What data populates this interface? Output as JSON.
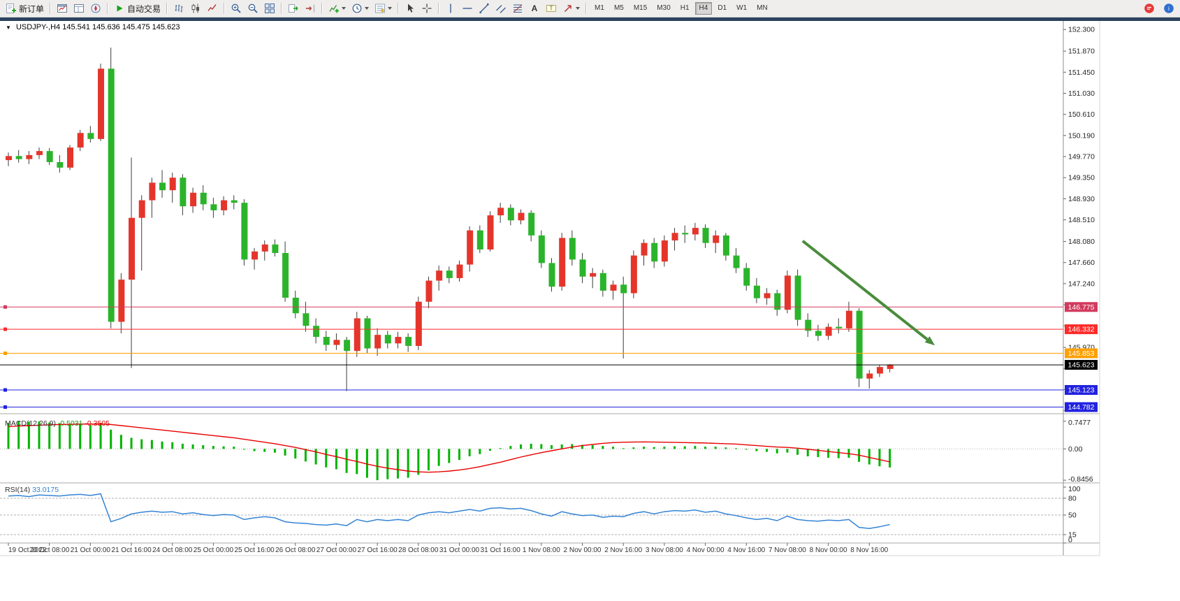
{
  "window": {
    "toolbar": {
      "timeframes": [
        "M1",
        "M5",
        "M15",
        "M30",
        "H1",
        "H4",
        "D1",
        "W1",
        "MN"
      ],
      "active_timeframe": "H4",
      "groups": [
        {
          "items": [
            {
              "icon": "new-order-icon",
              "label": "新订单",
              "name": "new-order-button"
            }
          ]
        },
        {
          "items": [
            {
              "icon": "charts-window-icon",
              "name": "charts-window-button"
            },
            {
              "icon": "data-window-icon",
              "name": "data-window-button"
            },
            {
              "icon": "navigator-icon",
              "name": "navigator-button"
            }
          ]
        },
        {
          "items": [
            {
              "icon": "autotrading-icon",
              "label": "自动交易",
              "name": "autotrading-button"
            }
          ]
        },
        {
          "items": [
            {
              "icon": "bar-chart-icon",
              "name": "bar-chart-button"
            },
            {
              "icon": "candlestick-icon",
              "name": "candlestick-button"
            },
            {
              "icon": "line-chart-icon",
              "name": "line-chart-button"
            }
          ]
        },
        {
          "items": [
            {
              "icon": "zoom-in-icon",
              "name": "zoom-in-button"
            },
            {
              "icon": "zoom-out-icon",
              "name": "zoom-out-button"
            },
            {
              "icon": "tile-windows-icon",
              "name": "tile-windows-button"
            }
          ]
        },
        {
          "items": [
            {
              "icon": "auto-scroll-icon",
              "name": "auto-scroll-button"
            },
            {
              "icon": "chart-shift-icon",
              "name": "chart-shift-button"
            }
          ]
        },
        {
          "items": [
            {
              "icon": "indicators-icon",
              "name": "indicators-button",
              "caret": true
            },
            {
              "icon": "periods-icon",
              "name": "periods-button",
              "caret": true
            },
            {
              "icon": "templates-icon",
              "name": "templates-button",
              "caret": true
            }
          ]
        },
        {
          "items": [
            {
              "icon": "cursor-icon",
              "name": "cursor-button"
            },
            {
              "icon": "crosshair-icon",
              "name": "crosshair-button"
            }
          ]
        },
        {
          "items": [
            {
              "icon": "vertical-line-icon",
              "name": "vertical-line-button"
            },
            {
              "icon": "horizontal-line-icon",
              "name": "horizontal-line-button"
            },
            {
              "icon": "trendline-icon",
              "name": "trendline-button"
            },
            {
              "icon": "equidistant-channel-icon",
              "name": "equidistant-channel-button"
            },
            {
              "icon": "fibonacci-icon",
              "name": "fibonacci-button"
            },
            {
              "icon": "text-icon",
              "name": "text-button"
            },
            {
              "icon": "text-label-icon",
              "name": "text-label-button"
            },
            {
              "icon": "arrows-icon",
              "name": "arrows-button",
              "caret": true
            }
          ]
        }
      ],
      "right_icons": [
        {
          "icon": "community-icon",
          "name": "community-button"
        },
        {
          "icon": "metaquotes-icon",
          "name": "metaquotes-button"
        }
      ]
    }
  },
  "chart": {
    "symbol_period": "USDJPY-,H4",
    "ohlc_line": "145.541 145.636 145.475 145.623"
  },
  "chart_data": {
    "type": "candlestick",
    "symbol": "USDJPY-",
    "timeframe": "H4",
    "bars": 87,
    "colors": {
      "up": "#e5352b",
      "down": "#2bb42b",
      "wick": "#3c3c3c",
      "background": "#ffffff"
    },
    "x_labels": [
      {
        "i": 0,
        "label": "19 Oct 2022"
      },
      {
        "i": 4,
        "label": "20 Oct 08:00"
      },
      {
        "i": 8,
        "label": "21 Oct 00:00"
      },
      {
        "i": 12,
        "label": "21 Oct 16:00"
      },
      {
        "i": 16,
        "label": "24 Oct 08:00"
      },
      {
        "i": 20,
        "label": "25 Oct 00:00"
      },
      {
        "i": 24,
        "label": "25 Oct 16:00"
      },
      {
        "i": 28,
        "label": "26 Oct 08:00"
      },
      {
        "i": 32,
        "label": "27 Oct 00:00"
      },
      {
        "i": 36,
        "label": "27 Oct 16:00"
      },
      {
        "i": 40,
        "label": "28 Oct 08:00"
      },
      {
        "i": 44,
        "label": "31 Oct 00:00"
      },
      {
        "i": 48,
        "label": "31 Oct 16:00"
      },
      {
        "i": 52,
        "label": "1 Nov 08:00"
      },
      {
        "i": 56,
        "label": "2 Nov 00:00"
      },
      {
        "i": 60,
        "label": "2 Nov 16:00"
      },
      {
        "i": 64,
        "label": "3 Nov 08:00"
      },
      {
        "i": 68,
        "label": "4 Nov 00:00"
      },
      {
        "i": 72,
        "label": "4 Nov 16:00"
      },
      {
        "i": 76,
        "label": "7 Nov 08:00"
      },
      {
        "i": 80,
        "label": "8 Nov 00:00"
      },
      {
        "i": 84,
        "label": "8 Nov 16:00"
      }
    ],
    "price_axis": {
      "visible_range": [
        144.65,
        152.47
      ],
      "ticks": [
        152.3,
        151.87,
        151.45,
        151.03,
        150.61,
        150.19,
        149.77,
        149.35,
        148.93,
        148.51,
        148.08,
        147.66,
        147.24,
        146.82,
        146.4,
        145.97,
        145.55,
        145.13,
        144.71
      ]
    },
    "candles": [
      [
        149.7,
        149.85,
        149.58,
        149.78
      ],
      [
        149.78,
        149.9,
        149.65,
        149.72
      ],
      [
        149.72,
        149.88,
        149.62,
        149.8
      ],
      [
        149.8,
        149.95,
        149.72,
        149.88
      ],
      [
        149.88,
        149.94,
        149.6,
        149.66
      ],
      [
        149.66,
        149.8,
        149.45,
        149.55
      ],
      [
        149.55,
        150.0,
        149.5,
        149.95
      ],
      [
        149.95,
        150.3,
        149.88,
        150.24
      ],
      [
        150.24,
        150.38,
        150.05,
        150.12
      ],
      [
        150.12,
        151.62,
        150.08,
        151.52
      ],
      [
        151.52,
        151.94,
        146.35,
        146.48
      ],
      [
        146.48,
        147.45,
        146.25,
        147.32
      ],
      [
        147.32,
        149.75,
        145.56,
        148.55
      ],
      [
        148.55,
        149.0,
        147.5,
        148.9
      ],
      [
        148.9,
        149.35,
        148.55,
        149.25
      ],
      [
        149.25,
        149.5,
        148.95,
        149.1
      ],
      [
        149.1,
        149.45,
        148.85,
        149.35
      ],
      [
        149.35,
        149.42,
        148.6,
        148.78
      ],
      [
        148.78,
        149.15,
        148.65,
        149.05
      ],
      [
        149.05,
        149.2,
        148.7,
        148.82
      ],
      [
        148.82,
        148.95,
        148.55,
        148.7
      ],
      [
        148.7,
        148.98,
        148.6,
        148.9
      ],
      [
        148.9,
        149.0,
        148.72,
        148.85
      ],
      [
        148.85,
        148.92,
        147.6,
        147.72
      ],
      [
        147.72,
        147.95,
        147.52,
        147.88
      ],
      [
        147.88,
        148.1,
        147.7,
        148.02
      ],
      [
        148.02,
        148.12,
        147.78,
        147.85
      ],
      [
        147.85,
        148.08,
        146.88,
        146.96
      ],
      [
        146.96,
        147.1,
        146.55,
        146.65
      ],
      [
        146.65,
        146.88,
        146.28,
        146.4
      ],
      [
        146.4,
        146.55,
        146.05,
        146.18
      ],
      [
        146.18,
        146.3,
        145.9,
        146.02
      ],
      [
        146.02,
        146.25,
        145.92,
        146.12
      ],
      [
        146.12,
        146.18,
        145.1,
        145.9
      ],
      [
        145.9,
        146.68,
        145.78,
        146.55
      ],
      [
        146.55,
        146.6,
        145.85,
        145.95
      ],
      [
        145.95,
        146.35,
        145.8,
        146.22
      ],
      [
        146.22,
        146.3,
        145.95,
        146.05
      ],
      [
        146.05,
        146.28,
        145.95,
        146.18
      ],
      [
        146.18,
        146.25,
        145.88,
        146.0
      ],
      [
        146.0,
        146.98,
        145.92,
        146.88
      ],
      [
        146.88,
        147.38,
        146.75,
        147.3
      ],
      [
        147.3,
        147.6,
        147.1,
        147.5
      ],
      [
        147.5,
        147.58,
        147.25,
        147.35
      ],
      [
        147.35,
        147.7,
        147.28,
        147.62
      ],
      [
        147.62,
        148.38,
        147.48,
        148.3
      ],
      [
        148.3,
        148.4,
        147.85,
        147.92
      ],
      [
        147.92,
        148.68,
        147.88,
        148.6
      ],
      [
        148.6,
        148.85,
        148.45,
        148.75
      ],
      [
        148.75,
        148.82,
        148.4,
        148.5
      ],
      [
        148.5,
        148.72,
        148.42,
        148.65
      ],
      [
        148.65,
        148.7,
        148.08,
        148.2
      ],
      [
        148.2,
        148.3,
        147.55,
        147.65
      ],
      [
        147.65,
        147.75,
        147.08,
        147.18
      ],
      [
        147.18,
        148.25,
        147.1,
        148.15
      ],
      [
        148.15,
        148.3,
        147.6,
        147.72
      ],
      [
        147.72,
        147.85,
        147.25,
        147.38
      ],
      [
        147.38,
        147.55,
        147.15,
        147.45
      ],
      [
        147.45,
        147.52,
        146.98,
        147.1
      ],
      [
        147.1,
        147.3,
        146.92,
        147.22
      ],
      [
        147.22,
        147.38,
        145.75,
        147.05
      ],
      [
        147.05,
        147.9,
        146.95,
        147.8
      ],
      [
        147.8,
        148.12,
        147.6,
        148.05
      ],
      [
        148.05,
        148.15,
        147.55,
        147.68
      ],
      [
        147.68,
        148.2,
        147.58,
        148.1
      ],
      [
        148.1,
        148.35,
        147.9,
        148.25
      ],
      [
        148.25,
        148.4,
        148.05,
        148.22
      ],
      [
        148.22,
        148.45,
        148.1,
        148.35
      ],
      [
        148.35,
        148.42,
        147.95,
        148.05
      ],
      [
        148.05,
        148.3,
        147.85,
        148.2
      ],
      [
        148.2,
        148.25,
        147.7,
        147.8
      ],
      [
        147.8,
        147.95,
        147.45,
        147.55
      ],
      [
        147.55,
        147.65,
        147.1,
        147.2
      ],
      [
        147.2,
        147.35,
        146.85,
        146.95
      ],
      [
        146.95,
        147.15,
        146.82,
        147.05
      ],
      [
        147.05,
        147.12,
        146.6,
        146.72
      ],
      [
        146.72,
        147.5,
        146.65,
        147.4
      ],
      [
        147.4,
        147.52,
        146.4,
        146.52
      ],
      [
        146.52,
        146.65,
        146.18,
        146.3
      ],
      [
        146.3,
        146.42,
        146.1,
        146.2
      ],
      [
        146.2,
        146.45,
        146.12,
        146.38
      ],
      [
        146.38,
        146.55,
        146.25,
        146.35
      ],
      [
        146.35,
        146.88,
        146.28,
        146.7
      ],
      [
        146.7,
        146.75,
        145.18,
        145.35
      ],
      [
        145.35,
        145.52,
        145.15,
        145.45
      ],
      [
        145.45,
        145.62,
        145.38,
        145.58
      ],
      [
        145.541,
        145.636,
        145.475,
        145.623
      ]
    ],
    "price_lines": [
      {
        "price": 146.775,
        "label": "146.775",
        "color": "#d23b5e",
        "handles": true,
        "current": false
      },
      {
        "price": 146.332,
        "label": "146.332",
        "color": "#ff2a2a",
        "handles": true,
        "current": false
      },
      {
        "price": 145.853,
        "label": "145.853",
        "color": "#ff9f00",
        "handles": true,
        "current": false
      },
      {
        "price": 145.623,
        "label": "145.623",
        "color": "#000000",
        "handles": false,
        "current": true
      },
      {
        "price": 145.123,
        "label": "145.123",
        "color": "#2222e0",
        "handles": true,
        "current": false
      },
      {
        "price": 144.782,
        "label": "144.782",
        "color": "#2222e0",
        "handles": true,
        "current": false
      }
    ],
    "objects": {
      "trend_arrow": {
        "from_bar": 77.5,
        "from_price": 148.09,
        "to_bar": 90.4,
        "to_price": 146.01,
        "color": "#4a8c3c",
        "width": 4
      }
    },
    "indicators": {
      "macd": {
        "label": "MACD(12,26,9)",
        "value_main": "-0.5031",
        "value_signal": "-0.3505",
        "hist_color": "#00b400",
        "signal_color": "#e80000",
        "range": [
          -0.9,
          0.8
        ],
        "scale": [
          {
            "v": 0.7477,
            "label": "0.7477"
          },
          {
            "v": 0,
            "label": "0.00"
          },
          {
            "v": -0.8456,
            "label": "-0.8456"
          }
        ],
        "histogram": [
          0.7,
          0.7477,
          0.73,
          0.74,
          0.71,
          0.69,
          0.66,
          0.68,
          0.64,
          0.7,
          0.52,
          0.38,
          0.3,
          0.26,
          0.24,
          0.2,
          0.18,
          0.14,
          0.12,
          0.1,
          0.08,
          0.07,
          0.06,
          -0.02,
          -0.06,
          -0.08,
          -0.1,
          -0.18,
          -0.26,
          -0.34,
          -0.42,
          -0.5,
          -0.55,
          -0.65,
          -0.68,
          -0.78,
          -0.8456,
          -0.82,
          -0.8,
          -0.78,
          -0.7,
          -0.58,
          -0.46,
          -0.38,
          -0.3,
          -0.2,
          -0.14,
          -0.05,
          0.02,
          0.08,
          0.12,
          0.14,
          0.13,
          0.1,
          0.12,
          0.13,
          0.11,
          0.1,
          0.08,
          0.06,
          0.02,
          0.04,
          0.06,
          0.05,
          0.06,
          0.07,
          0.07,
          0.08,
          0.06,
          0.06,
          0.04,
          0.02,
          -0.02,
          -0.06,
          -0.08,
          -0.12,
          -0.1,
          -0.16,
          -0.2,
          -0.22,
          -0.24,
          -0.25,
          -0.24,
          -0.35,
          -0.42,
          -0.47,
          -0.5031
        ],
        "signal": [
          0.6,
          0.62,
          0.63,
          0.64,
          0.65,
          0.66,
          0.665,
          0.67,
          0.672,
          0.675,
          0.66,
          0.63,
          0.6,
          0.57,
          0.54,
          0.51,
          0.48,
          0.45,
          0.42,
          0.39,
          0.36,
          0.33,
          0.3,
          0.26,
          0.22,
          0.18,
          0.14,
          0.09,
          0.04,
          -0.02,
          -0.08,
          -0.15,
          -0.21,
          -0.28,
          -0.34,
          -0.41,
          -0.47,
          -0.52,
          -0.56,
          -0.6,
          -0.62,
          -0.63,
          -0.62,
          -0.6,
          -0.57,
          -0.53,
          -0.48,
          -0.42,
          -0.36,
          -0.29,
          -0.22,
          -0.16,
          -0.1,
          -0.05,
          0.0,
          0.05,
          0.09,
          0.12,
          0.15,
          0.17,
          0.18,
          0.185,
          0.19,
          0.185,
          0.18,
          0.175,
          0.17,
          0.165,
          0.16,
          0.15,
          0.14,
          0.13,
          0.11,
          0.09,
          0.07,
          0.05,
          0.04,
          0.02,
          -0.01,
          -0.04,
          -0.07,
          -0.1,
          -0.13,
          -0.17,
          -0.23,
          -0.29,
          -0.3505
        ]
      },
      "rsi": {
        "label": "RSI(14)",
        "value": "33.0175",
        "color": "#3584d4",
        "range": [
          0,
          100
        ],
        "levels": [
          80,
          50,
          15
        ],
        "scale": [
          {
            "v": 100,
            "label": "100"
          },
          {
            "v": 80,
            "label": "80"
          },
          {
            "v": 50,
            "label": "50"
          },
          {
            "v": 15,
            "label": "15"
          },
          {
            "v": 0,
            "label": "0"
          }
        ],
        "values": [
          84,
          85,
          83,
          86,
          85,
          84,
          86,
          87,
          85,
          88,
          38,
          44,
          52,
          55,
          57,
          55,
          56,
          52,
          54,
          51,
          49,
          51,
          50,
          42,
          45,
          47,
          45,
          38,
          36,
          35,
          33,
          32,
          34,
          31,
          42,
          38,
          42,
          40,
          42,
          40,
          50,
          54,
          56,
          54,
          57,
          60,
          57,
          62,
          63,
          61,
          62,
          58,
          52,
          48,
          56,
          52,
          49,
          50,
          46,
          48,
          47,
          53,
          56,
          52,
          56,
          58,
          57,
          59,
          55,
          57,
          52,
          49,
          45,
          42,
          44,
          40,
          48,
          42,
          40,
          39,
          41,
          40,
          42,
          28,
          26,
          29,
          33.0175
        ]
      }
    }
  }
}
